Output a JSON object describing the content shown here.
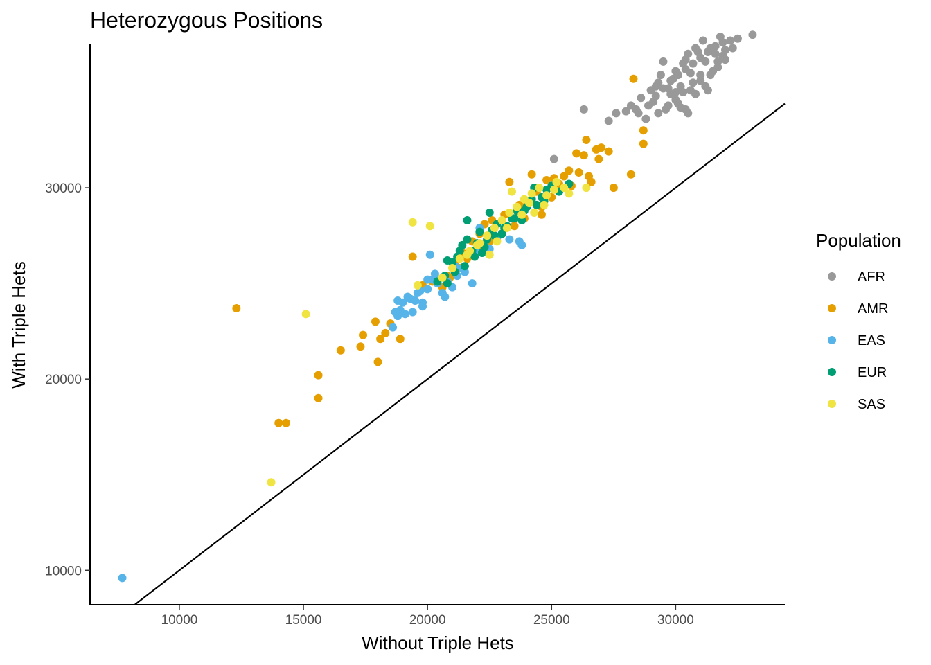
{
  "chart_data": {
    "type": "scatter",
    "title": "Heterozygous Positions",
    "xlabel": "Without Triple Hets",
    "ylabel": "With Triple Hets",
    "xlim": [
      6400,
      34400
    ],
    "ylim": [
      8200,
      37500
    ],
    "x_ticks": [
      10000,
      15000,
      20000,
      25000,
      30000
    ],
    "y_ticks": [
      10000,
      20000,
      30000
    ],
    "x_tick_labels": [
      "10000",
      "15000",
      "20000",
      "25000",
      "30000"
    ],
    "y_tick_labels": [
      "10000",
      "20000",
      "30000"
    ],
    "reference_line": {
      "type": "identity",
      "slope": 1,
      "intercept": 0,
      "color": "#000000"
    },
    "grid": false,
    "legend": {
      "title": "Population",
      "position": "right"
    },
    "series": [
      {
        "name": "AFR",
        "color": "#999999",
        "points": [
          [
            28500,
            33900
          ],
          [
            28900,
            34300
          ],
          [
            29200,
            34800
          ],
          [
            29500,
            35200
          ],
          [
            29800,
            35600
          ],
          [
            30100,
            35900
          ],
          [
            30400,
            36200
          ],
          [
            30700,
            36500
          ],
          [
            31000,
            36800
          ],
          [
            31300,
            37100
          ],
          [
            31600,
            37400
          ],
          [
            31900,
            37600
          ],
          [
            32200,
            37700
          ],
          [
            32500,
            37800
          ],
          [
            33100,
            38000
          ],
          [
            31800,
            37900
          ],
          [
            29400,
            35900
          ],
          [
            29900,
            35700
          ],
          [
            30200,
            35300
          ],
          [
            30600,
            35100
          ],
          [
            31000,
            35600
          ],
          [
            31400,
            35900
          ],
          [
            31700,
            36300
          ],
          [
            32000,
            36700
          ],
          [
            29100,
            34500
          ],
          [
            29600,
            34100
          ],
          [
            30000,
            34600
          ],
          [
            30300,
            35000
          ],
          [
            30800,
            34900
          ],
          [
            31200,
            35300
          ],
          [
            28400,
            34100
          ],
          [
            28800,
            33600
          ],
          [
            29300,
            33900
          ],
          [
            29700,
            34300
          ],
          [
            30200,
            34200
          ],
          [
            30500,
            33900
          ],
          [
            27300,
            33500
          ],
          [
            27600,
            33900
          ],
          [
            28000,
            34000
          ],
          [
            26300,
            34100
          ],
          [
            25100,
            31500
          ],
          [
            28600,
            34700
          ],
          [
            29000,
            35100
          ],
          [
            29300,
            35500
          ],
          [
            29700,
            35200
          ],
          [
            30000,
            36100
          ],
          [
            30400,
            36700
          ],
          [
            30900,
            37100
          ],
          [
            31200,
            36600
          ],
          [
            31500,
            36100
          ],
          [
            31900,
            36900
          ],
          [
            32300,
            37300
          ],
          [
            30600,
            36000
          ],
          [
            29800,
            34900
          ],
          [
            30100,
            34400
          ],
          [
            31000,
            35900
          ],
          [
            31400,
            37300
          ],
          [
            31600,
            37000
          ],
          [
            32000,
            37200
          ],
          [
            30800,
            37300
          ],
          [
            31100,
            37700
          ],
          [
            29500,
            36600
          ],
          [
            30300,
            36500
          ],
          [
            30700,
            35500
          ],
          [
            31300,
            35100
          ],
          [
            28200,
            34300
          ],
          [
            29200,
            35300
          ],
          [
            30500,
            37000
          ],
          [
            31700,
            36600
          ],
          [
            30000,
            35000
          ],
          [
            30400,
            34100
          ]
        ]
      },
      {
        "name": "AMR",
        "color": "#E69F00",
        "points": [
          [
            12300,
            23700
          ],
          [
            14000,
            17700
          ],
          [
            14300,
            17700
          ],
          [
            15600,
            20200
          ],
          [
            15600,
            19000
          ],
          [
            16500,
            21500
          ],
          [
            17300,
            21700
          ],
          [
            17400,
            22300
          ],
          [
            17900,
            23000
          ],
          [
            18000,
            20900
          ],
          [
            18100,
            22100
          ],
          [
            18300,
            22400
          ],
          [
            18500,
            22900
          ],
          [
            18900,
            22100
          ],
          [
            19400,
            26400
          ],
          [
            19800,
            24900
          ],
          [
            20200,
            25100
          ],
          [
            20600,
            24800
          ],
          [
            20900,
            25300
          ],
          [
            21100,
            26100
          ],
          [
            21400,
            26600
          ],
          [
            21800,
            27200
          ],
          [
            22100,
            27600
          ],
          [
            22300,
            28100
          ],
          [
            22600,
            28300
          ],
          [
            22800,
            27400
          ],
          [
            23100,
            28600
          ],
          [
            23300,
            30300
          ],
          [
            23700,
            29100
          ],
          [
            24000,
            29300
          ],
          [
            24200,
            30700
          ],
          [
            24600,
            28600
          ],
          [
            24800,
            30400
          ],
          [
            25100,
            30500
          ],
          [
            25300,
            30200
          ],
          [
            25500,
            30600
          ],
          [
            26100,
            30800
          ],
          [
            26300,
            31700
          ],
          [
            26500,
            30600
          ],
          [
            26800,
            32000
          ],
          [
            27000,
            32100
          ],
          [
            27300,
            31900
          ],
          [
            27500,
            30000
          ],
          [
            28200,
            30700
          ],
          [
            28700,
            32300
          ],
          [
            28700,
            33000
          ],
          [
            28300,
            35700
          ],
          [
            26900,
            31500
          ],
          [
            26400,
            32500
          ],
          [
            26000,
            31800
          ],
          [
            25800,
            30100
          ],
          [
            25000,
            29500
          ],
          [
            24600,
            29000
          ],
          [
            23900,
            28400
          ],
          [
            23500,
            28000
          ],
          [
            23000,
            27600
          ],
          [
            22500,
            27200
          ],
          [
            22000,
            26800
          ],
          [
            21600,
            26300
          ],
          [
            21300,
            25800
          ],
          [
            20800,
            25400
          ],
          [
            24400,
            29800
          ],
          [
            25700,
            30900
          ],
          [
            26600,
            30300
          ]
        ]
      },
      {
        "name": "EAS",
        "color": "#56B4E9",
        "points": [
          [
            7700,
            9600
          ],
          [
            18700,
            23500
          ],
          [
            18800,
            23300
          ],
          [
            19000,
            24000
          ],
          [
            19200,
            24300
          ],
          [
            19400,
            23500
          ],
          [
            19600,
            24500
          ],
          [
            19800,
            24000
          ],
          [
            20000,
            24700
          ],
          [
            20200,
            25200
          ],
          [
            20400,
            25000
          ],
          [
            20600,
            24500
          ],
          [
            20800,
            25100
          ],
          [
            21000,
            24800
          ],
          [
            21200,
            25400
          ],
          [
            21500,
            25600
          ],
          [
            21800,
            25000
          ],
          [
            22000,
            26600
          ],
          [
            22300,
            27100
          ],
          [
            22500,
            26800
          ],
          [
            22800,
            27400
          ],
          [
            23000,
            27600
          ],
          [
            23300,
            27300
          ],
          [
            23700,
            27200
          ],
          [
            20100,
            26500
          ],
          [
            19500,
            24100
          ],
          [
            19800,
            23800
          ],
          [
            18600,
            22700
          ],
          [
            19100,
            23400
          ],
          [
            20700,
            24300
          ],
          [
            21400,
            25800
          ],
          [
            22800,
            28100
          ],
          [
            23800,
            27000
          ],
          [
            20300,
            25500
          ],
          [
            21100,
            25900
          ],
          [
            19700,
            24600
          ],
          [
            18900,
            23600
          ],
          [
            19300,
            24200
          ],
          [
            22100,
            27900
          ],
          [
            20000,
            25200
          ],
          [
            18800,
            24100
          ]
        ]
      },
      {
        "name": "EUR",
        "color": "#009E73",
        "points": [
          [
            20800,
            25000
          ],
          [
            21000,
            26100
          ],
          [
            21200,
            26400
          ],
          [
            21400,
            27000
          ],
          [
            21600,
            27300
          ],
          [
            21800,
            26700
          ],
          [
            22000,
            27100
          ],
          [
            22200,
            26600
          ],
          [
            22400,
            27300
          ],
          [
            22600,
            27800
          ],
          [
            22800,
            28100
          ],
          [
            23000,
            27600
          ],
          [
            23200,
            28000
          ],
          [
            23400,
            28400
          ],
          [
            23600,
            28800
          ],
          [
            23800,
            28300
          ],
          [
            24000,
            29000
          ],
          [
            24200,
            29400
          ],
          [
            24400,
            29100
          ],
          [
            24600,
            29500
          ],
          [
            24800,
            29900
          ],
          [
            25000,
            30100
          ],
          [
            25300,
            29800
          ],
          [
            25700,
            30200
          ],
          [
            20400,
            25100
          ],
          [
            20700,
            25400
          ],
          [
            21100,
            25600
          ],
          [
            21500,
            25900
          ],
          [
            21900,
            26400
          ],
          [
            22300,
            26900
          ],
          [
            22700,
            27500
          ],
          [
            23100,
            27900
          ],
          [
            23500,
            28400
          ],
          [
            23900,
            28800
          ],
          [
            24300,
            30000
          ],
          [
            21600,
            28300
          ],
          [
            22500,
            28700
          ],
          [
            20800,
            26200
          ],
          [
            21300,
            26700
          ],
          [
            22100,
            27700
          ],
          [
            24700,
            29300
          ]
        ]
      },
      {
        "name": "SAS",
        "color": "#F0E442",
        "points": [
          [
            13700,
            14600
          ],
          [
            15100,
            23400
          ],
          [
            19400,
            28200
          ],
          [
            20100,
            28000
          ],
          [
            19600,
            24900
          ],
          [
            20600,
            25300
          ],
          [
            21000,
            25800
          ],
          [
            21300,
            26300
          ],
          [
            21700,
            26700
          ],
          [
            22100,
            27100
          ],
          [
            22400,
            27500
          ],
          [
            22700,
            27900
          ],
          [
            23000,
            28300
          ],
          [
            23300,
            28700
          ],
          [
            23600,
            29000
          ],
          [
            23900,
            29400
          ],
          [
            24200,
            29700
          ],
          [
            24500,
            30000
          ],
          [
            24800,
            29600
          ],
          [
            25100,
            29900
          ],
          [
            25500,
            30000
          ],
          [
            25700,
            29700
          ],
          [
            26400,
            30000
          ],
          [
            24100,
            29200
          ],
          [
            23800,
            28600
          ],
          [
            23200,
            27900
          ],
          [
            22800,
            27200
          ],
          [
            22000,
            27000
          ],
          [
            21600,
            26500
          ],
          [
            23400,
            29800
          ],
          [
            24300,
            28700
          ],
          [
            24700,
            29100
          ],
          [
            25200,
            30300
          ],
          [
            22500,
            26500
          ]
        ]
      }
    ]
  }
}
